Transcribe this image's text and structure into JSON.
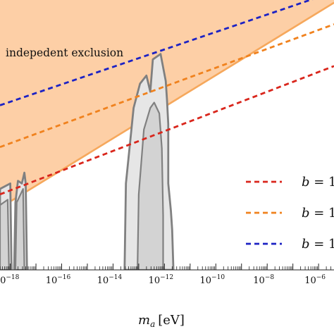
{
  "chart_data": {
    "type": "line",
    "title": "",
    "xlabel_var": "m",
    "xlabel_sub": "a",
    "xlabel_unit": "[eV]",
    "xscale": "log",
    "xlim_log10": [
      -18.4,
      -5.4
    ],
    "ylim": [
      0,
      1
    ],
    "tick_labels": [
      {
        "base": "10",
        "exp": "−18",
        "log10": -18
      },
      {
        "base": "10",
        "exp": "−16",
        "log10": -16
      },
      {
        "base": "10",
        "exp": "−14",
        "log10": -14
      },
      {
        "base": "10",
        "exp": "−12",
        "log10": -12
      },
      {
        "base": "10",
        "exp": "−10",
        "log10": -10
      },
      {
        "base": "10",
        "exp": "−8",
        "log10": -8
      },
      {
        "base": "10",
        "exp": "−6",
        "log10": -6
      }
    ],
    "annotation": "indepedent exclusion",
    "colors": {
      "exclusion_fill": "#fdcfa6",
      "exclusion_edge": "#f6a85c",
      "shaded_fill": "#e6e6e6",
      "shaded_inner": "#d3d3d3",
      "shaded_edge": "#808080",
      "red": "#d9261c",
      "orange": "#f0821e",
      "blue": "#1c22c4"
    },
    "series": [
      {
        "label": "b = 1",
        "color": "#d9261c",
        "style": "dashed",
        "points": [
          [
            -18.4,
            0.28
          ],
          [
            -5.4,
            0.755
          ]
        ]
      },
      {
        "label": "b = 1",
        "color": "#f0821e",
        "style": "dashed",
        "points": [
          [
            -18.4,
            0.455
          ],
          [
            -5.4,
            0.91
          ]
        ]
      },
      {
        "label": "b = 1",
        "color": "#1c22c4",
        "style": "dashed",
        "points": [
          [
            -18.4,
            0.61
          ],
          [
            -5.4,
            1.03
          ]
        ]
      }
    ],
    "exclusion_boundary": [
      [
        -18.4,
        0.23
      ],
      [
        -5.4,
        0.99
      ]
    ],
    "shaded_regions": [
      {
        "name": "left",
        "outer": [
          [
            -18.4,
            0
          ],
          [
            -18.4,
            0.3
          ],
          [
            -18.0,
            0.32
          ],
          [
            -17.95,
            0
          ]
        ],
        "inner": [
          [
            -18.4,
            0
          ],
          [
            -18.4,
            0.24
          ],
          [
            -18.1,
            0.26
          ],
          [
            -18.05,
            0
          ]
        ]
      },
      {
        "name": "mid",
        "outer": [
          [
            -17.85,
            0
          ],
          [
            -17.8,
            0.25
          ],
          [
            -17.7,
            0.33
          ],
          [
            -17.55,
            0.32
          ],
          [
            -17.45,
            0.36
          ],
          [
            -17.4,
            0.32
          ],
          [
            -17.35,
            0
          ]
        ],
        "inner": [
          [
            -17.8,
            0
          ],
          [
            -17.75,
            0.25
          ],
          [
            -17.5,
            0.3
          ],
          [
            -17.45,
            0
          ]
        ]
      },
      {
        "name": "large",
        "outer": [
          [
            -13.55,
            0
          ],
          [
            -13.5,
            0.32
          ],
          [
            -13.2,
            0.6
          ],
          [
            -12.95,
            0.69
          ],
          [
            -12.7,
            0.72
          ],
          [
            -12.55,
            0.66
          ],
          [
            -12.45,
            0.78
          ],
          [
            -12.15,
            0.8
          ],
          [
            -11.95,
            0.7
          ],
          [
            -11.9,
            0.63
          ],
          [
            -11.85,
            0.54
          ],
          [
            -11.85,
            0.32
          ],
          [
            -11.75,
            0.22
          ],
          [
            -11.7,
            0.15
          ],
          [
            -11.65,
            0
          ]
        ],
        "inner": [
          [
            -13.05,
            0
          ],
          [
            -13.0,
            0.28
          ],
          [
            -12.8,
            0.52
          ],
          [
            -12.55,
            0.6
          ],
          [
            -12.4,
            0.62
          ],
          [
            -12.2,
            0.58
          ],
          [
            -12.1,
            0.45
          ],
          [
            -12.05,
            0.2
          ],
          [
            -12.05,
            0
          ]
        ]
      }
    ]
  }
}
